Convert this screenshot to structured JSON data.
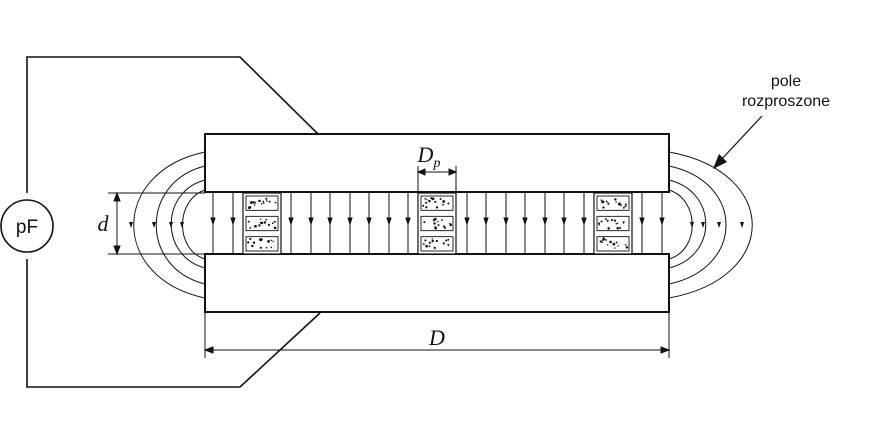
{
  "labels": {
    "meter": "pF",
    "stray_field_line1": "pole",
    "stray_field_line2": "rozproszone",
    "gap_symbol": "d",
    "diameter_symbol": "D",
    "pore_symbol_main": "D",
    "pore_symbol_sub": "p"
  },
  "colors": {
    "ink": "#111111",
    "background": "#ffffff",
    "pore_fill": "#ffffff"
  }
}
